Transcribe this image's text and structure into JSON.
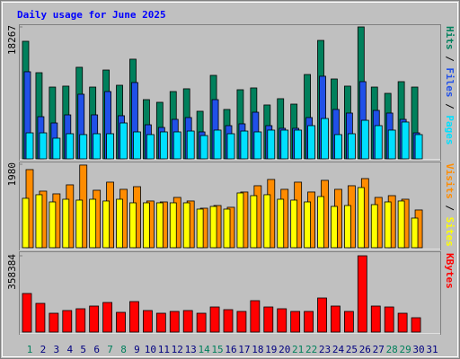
{
  "title": "Daily usage for June 2025",
  "chart_data": [
    {
      "type": "bar",
      "ylim": [
        0,
        18267
      ],
      "yticks": [
        18267
      ],
      "series": [
        {
          "name": "Hits",
          "color": "#00805c",
          "values": [
            16280,
            11930,
            9940,
            10070,
            12680,
            9940,
            12300,
            10190,
            13800,
            8200,
            7830,
            9320,
            9700,
            6590,
            11560,
            6840,
            9570,
            9820,
            7460,
            8330,
            7580,
            11680,
            16400,
            11060,
            10070,
            18267,
            9940,
            9070,
            10690,
            9940,
            null
          ]
        },
        {
          "name": "Files",
          "color": "#2050e8",
          "values": [
            12060,
            5840,
            4970,
            6090,
            8950,
            6090,
            9320,
            5970,
            10570,
            4720,
            4350,
            5470,
            5720,
            3730,
            8200,
            4600,
            4850,
            6460,
            4600,
            4230,
            4230,
            5720,
            11440,
            6840,
            6340,
            10690,
            6710,
            6340,
            5470,
            3600,
            null
          ]
        },
        {
          "name": "Pages",
          "color": "#00e0ff",
          "values": [
            3600,
            3600,
            2860,
            3480,
            3360,
            3480,
            3480,
            4970,
            3730,
            3360,
            3730,
            3730,
            3850,
            3230,
            3980,
            3480,
            3850,
            3730,
            3980,
            3980,
            3980,
            4600,
            5590,
            3360,
            3480,
            5340,
            4600,
            3980,
            5100,
            3360,
            null
          ]
        }
      ]
    },
    {
      "type": "bar",
      "ylim": [
        0,
        1980
      ],
      "yticks": [
        1980
      ],
      "series": [
        {
          "name": "Visits",
          "color": "#ff8c00",
          "values": [
            1853,
            1342,
            1278,
            1491,
            1960,
            1363,
            1555,
            1385,
            1448,
            1108,
            1086,
            1193,
            1108,
            937,
            1001,
            959,
            1321,
            1470,
            1619,
            1385,
            1555,
            1321,
            1598,
            1385,
            1470,
            1640,
            1193,
            1235,
            1150,
            895,
            null
          ]
        },
        {
          "name": "Sites",
          "color": "#ffff00",
          "values": [
            1172,
            1257,
            1086,
            1150,
            1129,
            1150,
            1108,
            1150,
            1065,
            1065,
            1065,
            1065,
            1065,
            916,
            980,
            916,
            1299,
            1235,
            1257,
            1150,
            1129,
            1086,
            1214,
            980,
            1001,
            1427,
            1022,
            1086,
            1108,
            703,
            null
          ]
        }
      ]
    },
    {
      "type": "bar",
      "ylim": [
        0,
        358384
      ],
      "yticks": [
        358384
      ],
      "categories": [
        "1",
        "2",
        "3",
        "4",
        "5",
        "6",
        "7",
        "8",
        "9",
        "10",
        "11",
        "12",
        "13",
        "14",
        "15",
        "16",
        "17",
        "18",
        "19",
        "20",
        "21",
        "22",
        "23",
        "24",
        "25",
        "26",
        "27",
        "28",
        "29",
        "30",
        "31"
      ],
      "category_colors": [
        "#00805c",
        "#000080",
        "#000080",
        "#000080",
        "#000080",
        "#000080",
        "#00805c",
        "#00805c",
        "#000080",
        "#000080",
        "#000080",
        "#000080",
        "#000080",
        "#00805c",
        "#00805c",
        "#000080",
        "#000080",
        "#000080",
        "#000080",
        "#000080",
        "#00805c",
        "#00805c",
        "#000080",
        "#000080",
        "#000080",
        "#000080",
        "#000080",
        "#00805c",
        "#00805c",
        "#000080",
        "#000080"
      ],
      "series": [
        {
          "name": "KBytes",
          "color": "#ff0000",
          "values": [
            181300,
            134900,
            88540,
            101200,
            109600,
            122300,
            139100,
            92760,
            143300,
            101200,
            88540,
            97000,
            101200,
            88540,
            118000,
            105400,
            97000,
            147600,
            118000,
            109600,
            97000,
            97000,
            160200,
            122300,
            97000,
            358384,
            122300,
            118000,
            88540,
            67460,
            null
          ]
        }
      ]
    }
  ]
}
